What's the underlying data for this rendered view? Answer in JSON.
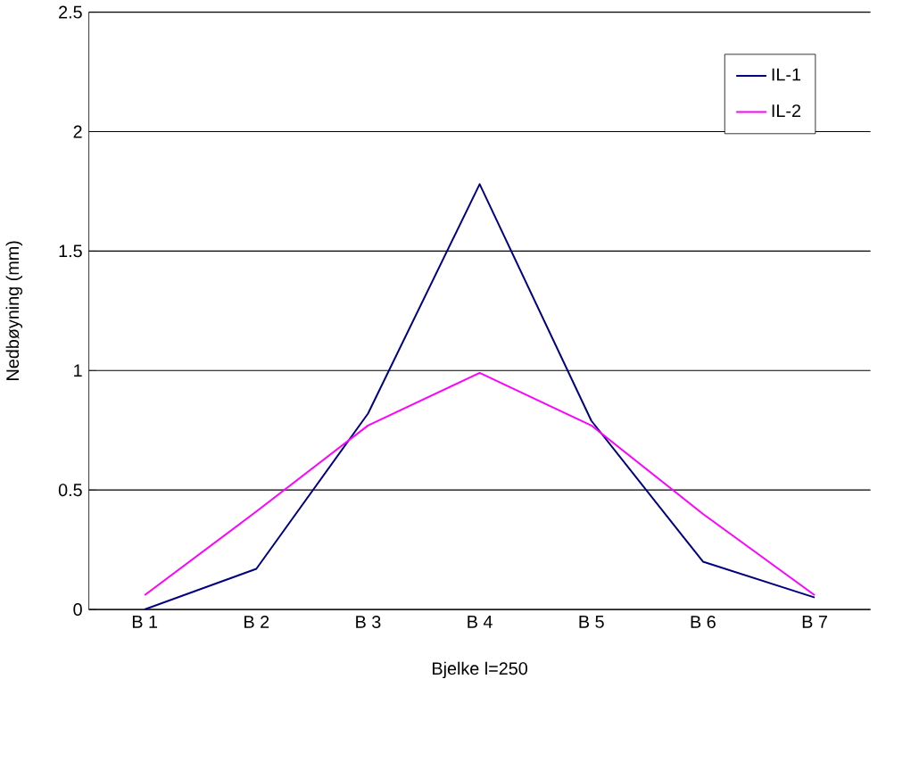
{
  "chart_data": {
    "type": "line",
    "xlabel": "Bjelke l=250",
    "ylabel": "Nedbøyning (mm)",
    "categories": [
      "B 1",
      "B 2",
      "B 3",
      "B 4",
      "B 5",
      "B 6",
      "B 7"
    ],
    "series": [
      {
        "name": "IL-1",
        "color": "#000080",
        "values": [
          0,
          0.17,
          0.82,
          1.78,
          0.79,
          0.2,
          0.05
        ]
      },
      {
        "name": "IL-2",
        "color": "#ff00ff",
        "values": [
          0.06,
          0.41,
          0.77,
          0.99,
          0.77,
          0.4,
          0.06
        ]
      }
    ],
    "ylim": [
      0,
      2.5
    ],
    "yticks": [
      0,
      0.5,
      1,
      1.5,
      2,
      2.5
    ],
    "grid": "y",
    "legend": "top right",
    "marker": "none",
    "line_style": "solid"
  }
}
